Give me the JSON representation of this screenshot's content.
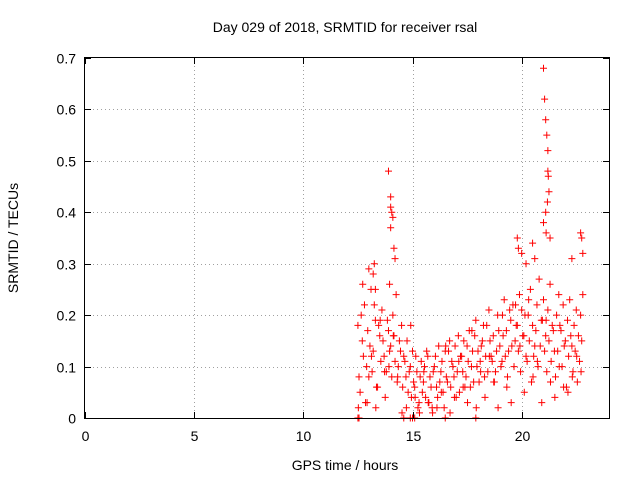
{
  "chart_data": {
    "type": "scatter",
    "title": "Day 029 of 2018, SRMTID for receiver rsal",
    "xlabel": "GPS time / hours",
    "ylabel": "SRMTID / TECUs",
    "xlim": [
      0,
      24
    ],
    "ylim": [
      0,
      0.7
    ],
    "xticks": [
      0,
      5,
      10,
      15,
      20
    ],
    "yticks": [
      0,
      0.1,
      0.2,
      0.3,
      0.4,
      0.5,
      0.6,
      0.7
    ],
    "xtick_labels": [
      "0",
      "5",
      "10",
      "15",
      "20"
    ],
    "ytick_labels": [
      "0",
      "0.1",
      "0.2",
      "0.3",
      "0.4",
      "0.5",
      "0.6",
      "0.7"
    ],
    "grid": true,
    "marker": "plus",
    "series": [
      {
        "name": "SRMTID",
        "color": "#ff0000",
        "x": [
          12.5,
          12.6,
          12.7,
          12.8,
          12.9,
          13.0,
          13.1,
          13.2,
          13.3,
          13.4,
          13.5,
          13.6,
          13.7,
          13.8,
          13.9,
          14.0,
          14.1,
          14.2,
          14.3,
          14.4,
          14.5,
          14.6,
          14.7,
          14.8,
          14.9,
          15.0,
          15.1,
          15.2,
          15.3,
          15.4,
          15.5,
          15.6,
          15.7,
          15.8,
          15.9,
          16.0,
          16.1,
          16.2,
          16.3,
          16.4,
          16.5,
          16.6,
          16.7,
          16.8,
          16.9,
          17.0,
          17.1,
          17.2,
          17.3,
          17.4,
          17.5,
          17.6,
          17.7,
          17.8,
          17.9,
          18.0,
          18.1,
          18.2,
          18.3,
          18.4,
          18.5,
          18.6,
          18.7,
          18.8,
          18.9,
          19.0,
          19.1,
          19.2,
          19.3,
          19.4,
          19.5,
          19.6,
          19.7,
          19.8,
          19.9,
          20.0,
          20.1,
          20.2,
          20.3,
          20.4,
          20.5,
          20.6,
          20.7,
          20.8,
          20.9,
          21.0,
          21.1,
          21.2,
          21.3,
          21.4,
          21.5,
          21.6,
          21.7,
          21.8,
          21.9,
          22.0,
          22.1,
          22.2,
          22.3,
          22.4,
          22.5,
          22.6,
          22.7,
          22.8,
          12.55,
          12.65,
          12.75,
          12.85,
          12.95,
          13.05,
          13.15,
          13.25,
          13.35,
          13.45,
          13.55,
          13.65,
          13.75,
          13.85,
          13.95,
          14.05,
          14.15,
          14.25,
          14.35,
          14.45,
          14.55,
          14.65,
          14.75,
          14.85,
          14.95,
          15.05,
          15.15,
          15.25,
          15.35,
          15.45,
          15.55,
          15.65,
          15.75,
          15.85,
          15.95,
          16.05,
          16.15,
          16.25,
          16.35,
          16.45,
          16.55,
          16.65,
          16.75,
          16.85,
          16.95,
          17.05,
          17.15,
          17.25,
          17.35,
          17.45,
          17.55,
          17.65,
          17.75,
          17.85,
          17.95,
          18.05,
          18.15,
          18.25,
          18.35,
          18.45,
          18.55,
          18.65,
          18.75,
          18.85,
          18.95,
          19.05,
          19.15,
          19.25,
          19.35,
          19.45,
          19.55,
          19.65,
          19.75,
          19.85,
          19.95,
          20.05,
          20.15,
          20.25,
          20.35,
          20.45,
          20.55,
          20.65,
          20.75,
          20.85,
          20.95,
          21.05,
          21.15,
          21.25,
          21.35,
          21.45,
          21.55,
          21.65,
          21.75,
          21.85,
          21.95,
          22.05,
          22.15,
          22.25,
          22.35,
          22.45,
          22.55,
          22.65,
          22.75,
          12.52,
          12.72,
          12.92,
          13.12,
          13.32,
          13.52,
          13.72,
          13.92,
          14.12,
          14.32,
          14.52,
          14.72,
          14.92,
          15.12,
          15.32,
          15.52,
          15.72,
          15.92,
          16.12,
          16.32,
          16.52,
          16.72,
          16.92,
          17.12,
          17.32,
          17.52,
          17.72,
          17.92,
          18.12,
          18.32,
          18.52,
          18.72,
          18.92,
          19.12,
          19.32,
          19.52,
          19.72,
          19.92,
          20.12,
          20.32,
          20.52,
          20.72,
          20.92,
          21.12,
          21.32,
          21.52,
          21.72,
          21.92,
          22.12,
          22.32,
          22.52,
          22.72,
          13.9,
          14.0,
          14.0,
          14.05,
          14.1,
          14.15,
          14.2,
          14.0,
          13.95,
          21.0,
          21.05,
          21.1,
          21.15,
          21.2,
          21.2,
          21.22,
          21.25,
          21.18,
          21.1,
          21.0,
          21.12,
          21.3,
          19.8,
          19.85,
          20.0,
          20.2,
          20.5,
          20.6,
          22.7,
          22.75,
          22.8,
          22.3,
          12.5,
          12.55,
          14.6,
          14.9,
          15.0,
          15.1,
          16.5,
          17.9,
          13.2,
          13.25,
          13.3,
          13.0
        ],
        "y": [
          0.18,
          0.05,
          0.15,
          0.22,
          0.1,
          0.08,
          0.25,
          0.13,
          0.19,
          0.06,
          0.16,
          0.21,
          0.12,
          0.09,
          0.17,
          0.14,
          0.2,
          0.11,
          0.07,
          0.15,
          0.18,
          0.12,
          0.08,
          0.05,
          0.1,
          0.13,
          0.06,
          0.09,
          0.03,
          0.11,
          0.07,
          0.04,
          0.12,
          0.08,
          0.02,
          0.1,
          0.06,
          0.14,
          0.09,
          0.05,
          0.13,
          0.07,
          0.15,
          0.11,
          0.08,
          0.04,
          0.16,
          0.12,
          0.09,
          0.06,
          0.14,
          0.17,
          0.1,
          0.07,
          0.19,
          0.13,
          0.11,
          0.15,
          0.08,
          0.18,
          0.21,
          0.12,
          0.16,
          0.09,
          0.2,
          0.14,
          0.11,
          0.23,
          0.17,
          0.13,
          0.19,
          0.22,
          0.15,
          0.18,
          0.24,
          0.21,
          0.16,
          0.12,
          0.2,
          0.25,
          0.18,
          0.14,
          0.22,
          0.27,
          0.19,
          0.23,
          0.16,
          0.21,
          0.26,
          0.18,
          0.13,
          0.2,
          0.24,
          0.17,
          0.22,
          0.15,
          0.19,
          0.23,
          0.14,
          0.18,
          0.21,
          0.16,
          0.2,
          0.24,
          0.08,
          0.2,
          0.12,
          0.03,
          0.17,
          0.14,
          0.09,
          0.22,
          0.06,
          0.18,
          0.11,
          0.15,
          0.04,
          0.19,
          0.13,
          0.08,
          0.16,
          0.24,
          0.1,
          0.13,
          0.06,
          0.11,
          0.15,
          0.09,
          0.04,
          0.07,
          0.12,
          0.02,
          0.08,
          0.05,
          0.1,
          0.13,
          0.03,
          0.06,
          0.09,
          0.12,
          0.04,
          0.07,
          0.11,
          0.02,
          0.08,
          0.13,
          0.06,
          0.1,
          0.14,
          0.09,
          0.05,
          0.12,
          0.15,
          0.08,
          0.11,
          0.06,
          0.13,
          0.16,
          0.1,
          0.07,
          0.14,
          0.18,
          0.12,
          0.09,
          0.15,
          0.11,
          0.07,
          0.13,
          0.17,
          0.1,
          0.16,
          0.12,
          0.08,
          0.21,
          0.14,
          0.1,
          0.18,
          0.13,
          0.09,
          0.16,
          0.2,
          0.11,
          0.15,
          0.07,
          0.12,
          0.17,
          0.1,
          0.14,
          0.19,
          0.13,
          0.09,
          0.15,
          0.11,
          0.17,
          0.08,
          0.13,
          0.18,
          0.1,
          0.14,
          0.06,
          0.12,
          0.16,
          0.09,
          0.13,
          0.07,
          0.11,
          0.15,
          0.02,
          0.26,
          0.03,
          0.12,
          0.02,
          0.19,
          0.09,
          0.1,
          0.16,
          0.08,
          0.01,
          0.02,
          0.18,
          0.04,
          0.01,
          0.09,
          0.03,
          0.01,
          0.02,
          0.05,
          0.14,
          0.01,
          0.04,
          0.11,
          0.06,
          0.03,
          0.17,
          0.02,
          0.09,
          0.04,
          0.12,
          0.07,
          0.02,
          0.2,
          0.06,
          0.03,
          0.22,
          0.14,
          0.05,
          0.23,
          0.08,
          0.11,
          0.03,
          0.19,
          0.07,
          0.04,
          0.1,
          0.06,
          0.05,
          0.08,
          0.12,
          0.09,
          0.48,
          0.41,
          0.43,
          0.4,
          0.39,
          0.33,
          0.31,
          0.37,
          0.26,
          0.68,
          0.62,
          0.58,
          0.55,
          0.52,
          0.48,
          0.47,
          0.44,
          0.42,
          0.4,
          0.38,
          0.36,
          0.35,
          0.35,
          0.33,
          0.32,
          0.3,
          0.34,
          0.31,
          0.36,
          0.35,
          0.32,
          0.31,
          0.0,
          0.0,
          0.0,
          0.0,
          0.0,
          0.0,
          0.0,
          0.0,
          0.28,
          0.3,
          0.25,
          0.29
        ]
      }
    ]
  }
}
